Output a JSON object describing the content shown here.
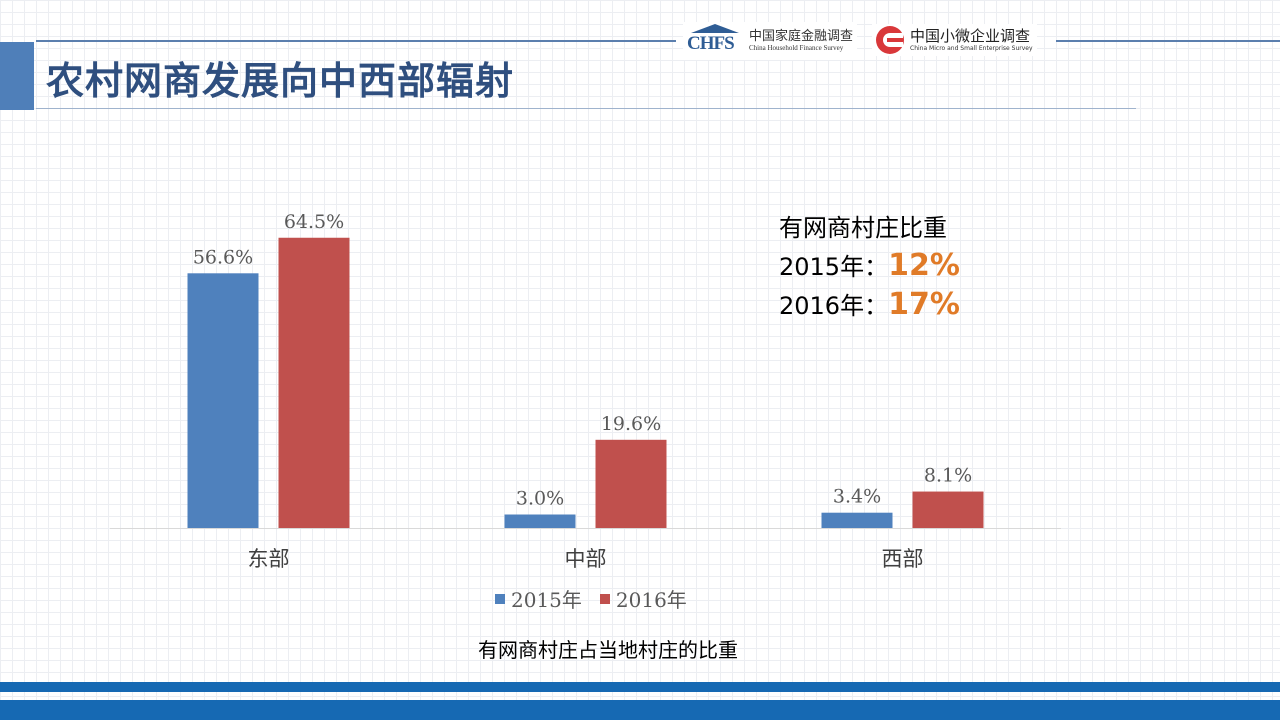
{
  "slide": {
    "title": "农村网商发展向中西部辐射",
    "caption": "有网商村庄占当地村庄的比重"
  },
  "logos": {
    "chfs": {
      "mark": "CHFS",
      "cn": "中国家庭金融调查",
      "en": "China Household Finance Survey"
    },
    "cmse": {
      "cn": "中国小微企业调查",
      "en": "China Micro and Small Enterprise Survey"
    }
  },
  "note": {
    "heading": "有网商村庄比重",
    "rows": [
      {
        "label": "2015年：",
        "value": "12%"
      },
      {
        "label": "2016年：",
        "value": "17%"
      }
    ]
  },
  "colors": {
    "series_2015": "#4f81bd",
    "series_2016": "#c0504d",
    "highlight": "#e07b28",
    "accent": "#1669b3"
  },
  "chart_data": {
    "type": "bar",
    "categories": [
      "东部",
      "中部",
      "西部"
    ],
    "series": [
      {
        "name": "2015年",
        "values": [
          56.6,
          3.0,
          3.4
        ],
        "labels": [
          "56.6%",
          "3.0%",
          "3.4%"
        ]
      },
      {
        "name": "2016年",
        "values": [
          64.5,
          19.6,
          8.1
        ],
        "labels": [
          "64.5%",
          "19.6%",
          "8.1%"
        ]
      }
    ],
    "ylim": [
      0,
      70
    ],
    "grid": false,
    "legend": "bottom",
    "xlabel": "",
    "ylabel": "",
    "title": ""
  }
}
